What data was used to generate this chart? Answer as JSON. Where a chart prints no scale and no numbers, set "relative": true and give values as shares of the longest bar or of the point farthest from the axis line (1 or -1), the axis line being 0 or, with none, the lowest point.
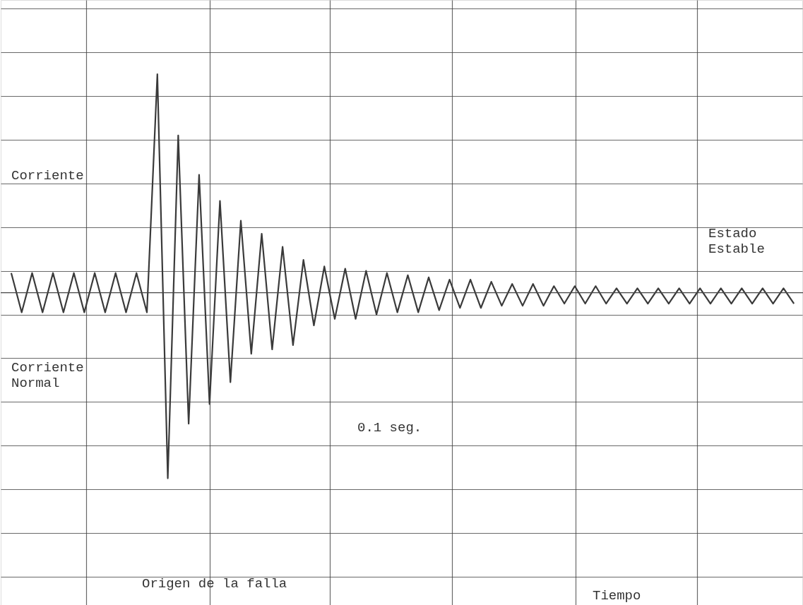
{
  "chart_data": {
    "type": "line",
    "relative": true,
    "color": "#3a3a3a",
    "grid": true,
    "tick_labels": false,
    "marker": "none",
    "line_style": "solid",
    "categories": [
      null,
      null,
      null,
      null,
      null,
      null,
      null,
      null,
      null,
      null,
      null,
      null,
      null,
      null,
      null,
      null,
      null,
      null,
      null,
      null,
      null,
      null,
      null,
      null,
      null,
      null,
      null,
      null,
      null,
      null,
      null,
      null,
      null,
      null,
      null,
      null,
      null,
      null,
      null,
      null,
      null,
      null,
      null,
      null,
      null,
      null,
      null,
      null,
      null,
      null,
      null,
      null,
      null,
      null,
      null,
      null,
      null,
      null,
      null,
      null,
      null,
      null,
      null,
      null,
      null,
      null,
      null,
      null,
      null,
      null,
      null,
      null,
      null,
      null,
      null,
      null
    ],
    "values": [
      0.09,
      -0.09,
      0.09,
      -0.09,
      0.09,
      -0.09,
      0.09,
      -0.09,
      0.09,
      -0.09,
      0.09,
      -0.09,
      0.09,
      -0.09,
      1.0,
      -0.85,
      0.72,
      -0.6,
      0.54,
      -0.51,
      0.42,
      -0.41,
      0.33,
      -0.28,
      0.27,
      -0.26,
      0.21,
      -0.24,
      0.15,
      -0.15,
      0.12,
      -0.12,
      0.11,
      -0.12,
      0.1,
      -0.1,
      0.09,
      -0.09,
      0.08,
      -0.09,
      0.07,
      -0.08,
      0.06,
      -0.07,
      0.06,
      -0.07,
      0.05,
      -0.06,
      0.04,
      -0.06,
      0.04,
      -0.06,
      0.03,
      -0.05,
      0.03,
      -0.05,
      0.03,
      -0.05,
      0.02,
      -0.05,
      0.02,
      -0.05,
      0.02,
      -0.05,
      0.02,
      -0.05,
      0.02,
      -0.05,
      0.02,
      -0.05,
      0.02,
      -0.05,
      0.02,
      -0.05,
      0.02,
      -0.05
    ],
    "annotations": [
      "Corriente",
      "Corriente\nNormal",
      "Estado\nEstable",
      "0.1 seg.",
      "Origen de la falla",
      "Tiempo"
    ]
  }
}
